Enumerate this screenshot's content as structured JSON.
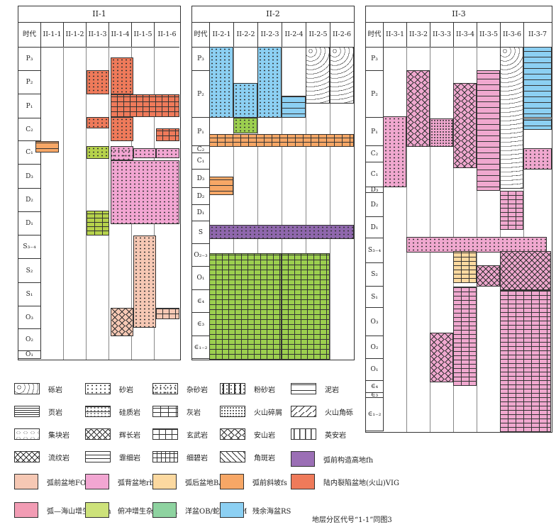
{
  "panels": [
    {
      "title": "II-1",
      "columns": [
        "时代",
        "II-1-1",
        "II-1-2",
        "II-1-3",
        "II-1-4",
        "II-1-5",
        "II-1-6"
      ],
      "periods": [
        "P₃",
        "P₂",
        "P₁",
        "C₂",
        "C₁",
        "D₃",
        "D₂",
        "D₁",
        "S₃₋₄",
        "S₂",
        "S₁",
        "O₃",
        "O₂",
        "O₁"
      ]
    },
    {
      "title": "II-2",
      "columns": [
        "时代",
        "II-2-1",
        "II-2-2",
        "II-2-3",
        "II-2-4",
        "II-2-5",
        "II-2-6"
      ],
      "periods": [
        "P₃",
        "P₂",
        "P₁",
        "C₂",
        "C₁",
        "D₃",
        "D₂",
        "D₁",
        "S",
        "O₂₋₃",
        "O₁",
        "∈₄",
        "∈₃",
        "∈₁₋₂"
      ]
    },
    {
      "title": "II-3",
      "columns": [
        "时代",
        "II-3-1",
        "II-3-2",
        "II-3-3",
        "II-3-4",
        "II-3-5",
        "II-3-6",
        "II-3-7"
      ],
      "periods": [
        "P₃",
        "P₂",
        "P₁",
        "C₂",
        "C₁",
        "D₃",
        "D₂",
        "D₁",
        "S₃₋₄",
        "S₂",
        "S₁",
        "O₃",
        "O₂",
        "O₁",
        "∈₄",
        "∈₃",
        "∈₁₋₂"
      ]
    }
  ],
  "legend_lithology": [
    {
      "name": "砾岩",
      "icon": "conglomerate-icon",
      "pattern": "cg"
    },
    {
      "name": "砂岩",
      "icon": "sandstone-icon",
      "pattern": "ss"
    },
    {
      "name": "杂砂岩",
      "icon": "greywacke-icon",
      "pattern": "zs"
    },
    {
      "name": "粉砂岩",
      "icon": "siltstone-icon",
      "pattern": "fs"
    },
    {
      "name": "泥岩",
      "icon": "mudstone-icon",
      "pattern": "ms"
    },
    {
      "name": "页岩",
      "icon": "shale-icon",
      "pattern": "ym"
    },
    {
      "name": "硅质岩",
      "icon": "siliceous-rock-icon",
      "pattern": "gz"
    },
    {
      "name": "灰岩",
      "icon": "limestone-icon",
      "pattern": "hy"
    },
    {
      "name": "火山碎屑",
      "icon": "pyroclastic-icon",
      "pattern": "hs"
    },
    {
      "name": "火山角砾",
      "icon": "volcanic-breccia-icon",
      "pattern": "hj"
    },
    {
      "name": "集块岩",
      "icon": "agglomerate-icon",
      "pattern": "jk"
    },
    {
      "name": "辉长岩",
      "icon": "gabbro-icon",
      "pattern": "hc"
    },
    {
      "name": "玄武岩",
      "icon": "basalt-icon",
      "pattern": "xw"
    },
    {
      "name": "安山岩",
      "icon": "andesite-icon",
      "pattern": "as"
    },
    {
      "name": "英安岩",
      "icon": "dacite-icon",
      "pattern": "ya"
    },
    {
      "name": "流纹岩",
      "icon": "rhyolite-icon",
      "pattern": "lw"
    },
    {
      "name": "霏细岩",
      "icon": "felsite-icon",
      "pattern": "hx"
    },
    {
      "name": "细碧岩",
      "icon": "spilite-icon",
      "pattern": "xb"
    },
    {
      "name": "角斑岩",
      "icon": "keratophyre-icon",
      "pattern": "jb"
    }
  ],
  "legend_settings": [
    {
      "name": "弧前构造高地fh",
      "color": "#9b6fb5"
    },
    {
      "name": "弧前盆地FO",
      "color": "#f6c8b4"
    },
    {
      "name": "弧背盆地rb",
      "color": "#f2a6d2"
    },
    {
      "name": "弧后盆地BA",
      "color": "#fcd9a0"
    },
    {
      "name": "弧前斜坡fs",
      "color": "#f7a766"
    },
    {
      "name": "陆内裂陷盆地(火山)VIG",
      "color": "#ef7a5a"
    },
    {
      "name": "弧—海山增生带asm",
      "color": "#f29cb4"
    },
    {
      "name": "俯冲增生杂岩带SA",
      "color": "#cde27a"
    },
    {
      "name": "洋盆OB/蛇绿岩OM",
      "color": "#8ed3a0"
    },
    {
      "name": "残余海盆RS",
      "color": "#8cd0f3"
    }
  ],
  "note": "地层分区代号“1-1”同图3",
  "colors": {
    "VIG": "#ef7a5a",
    "fs": "#f7a766",
    "SA": "#b6d24b",
    "rb": "#f2a6d2",
    "FO": "#f6c8b4",
    "RS": "#8cd0f3",
    "OB": "#9ccf4f",
    "fh": "#8f67ad",
    "BA": "#fcd9a0",
    "asm": "#f0a8cf"
  }
}
